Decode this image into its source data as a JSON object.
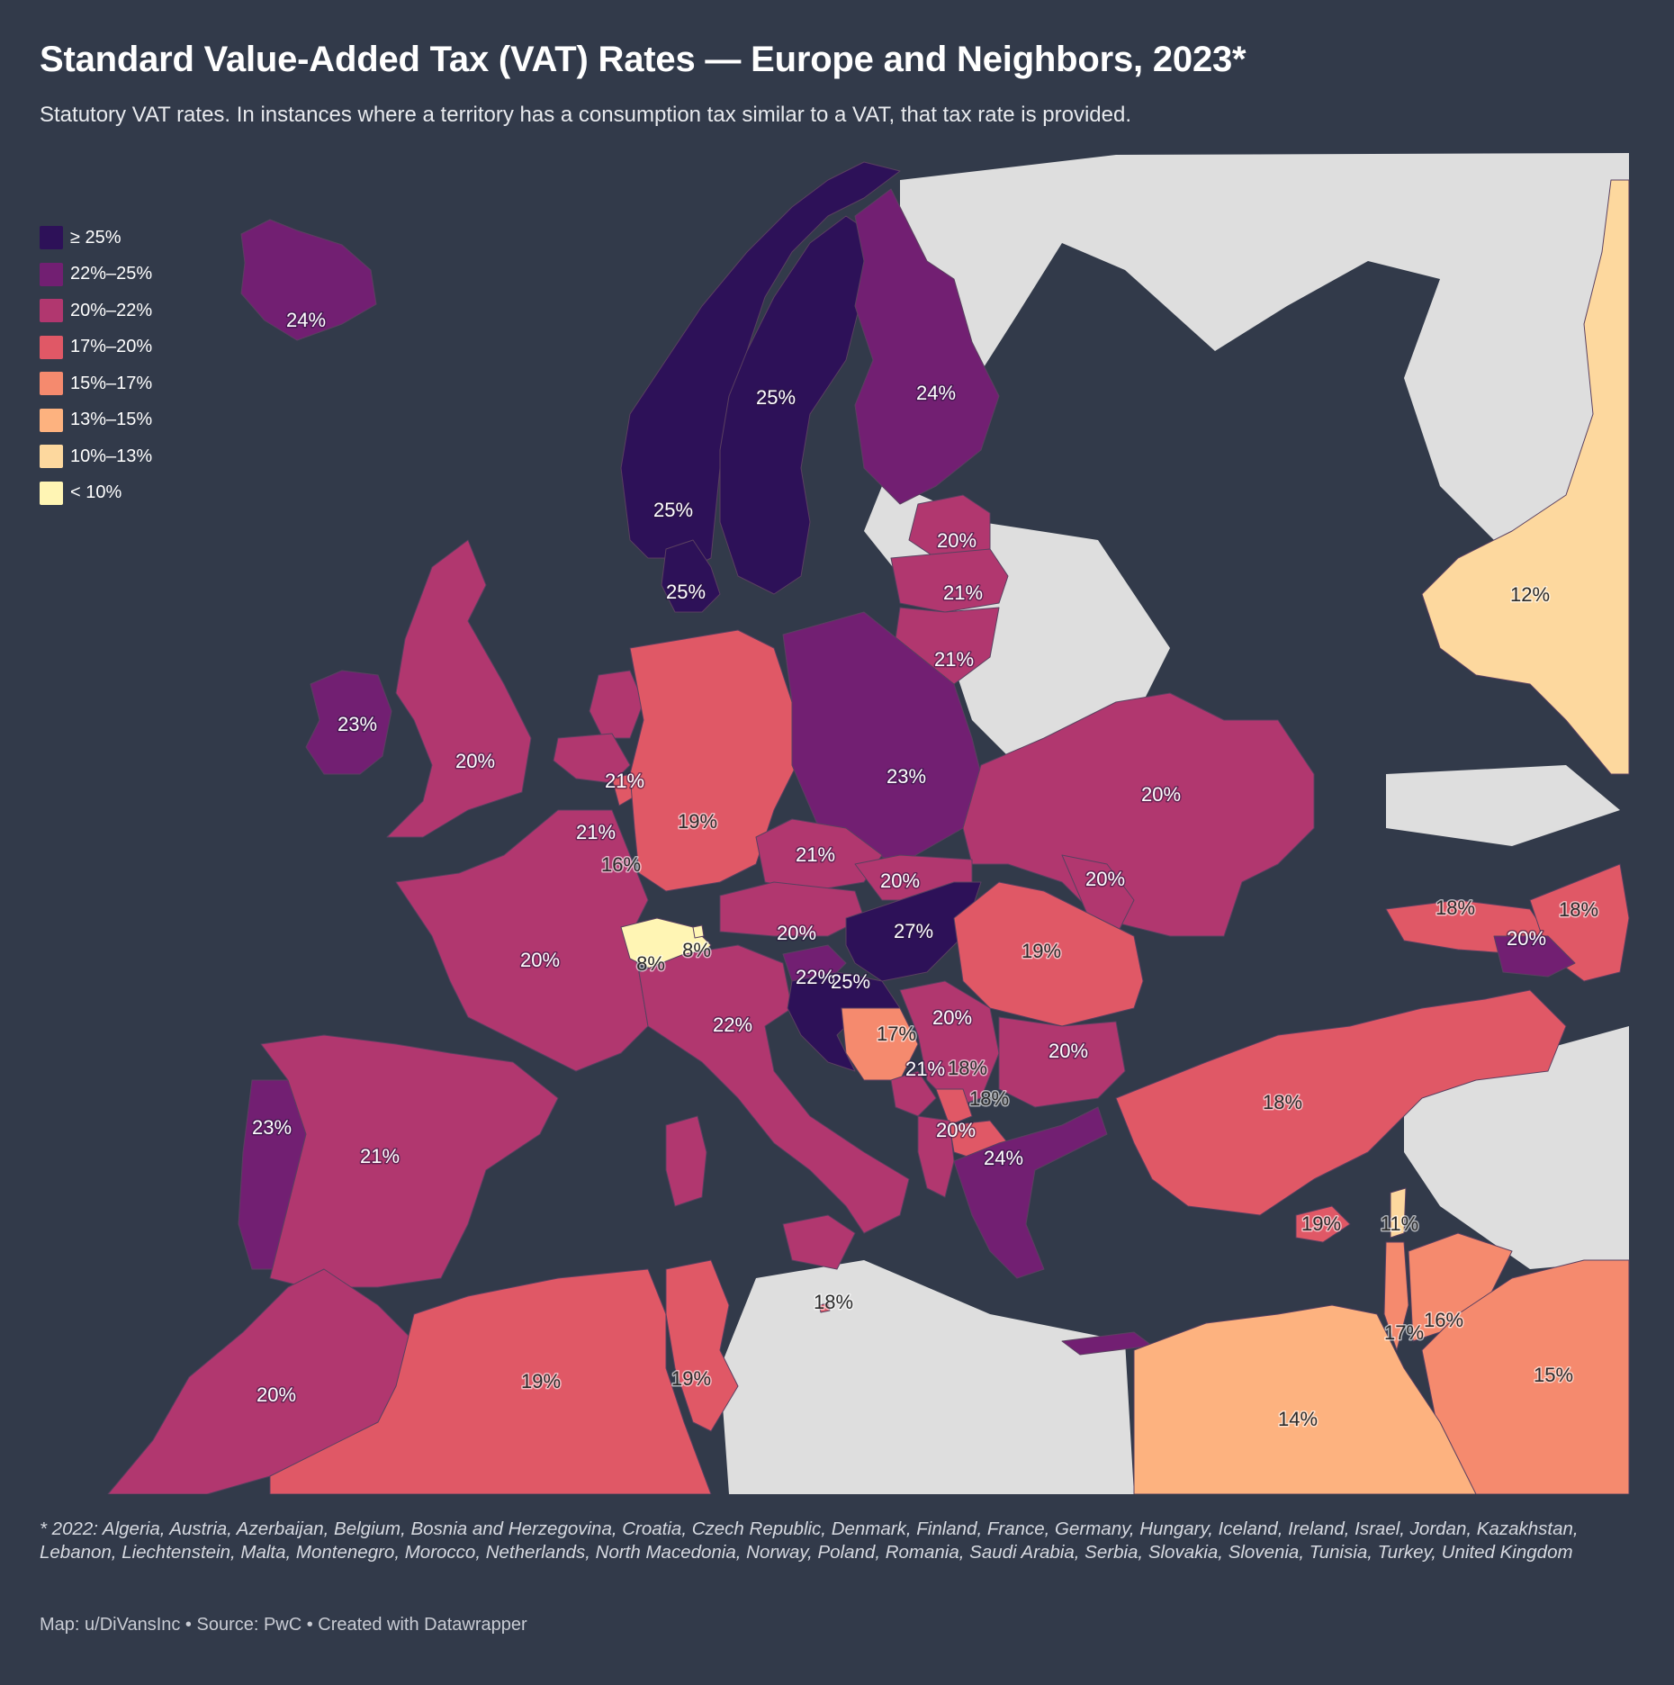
{
  "header": {
    "title": "Standard Value-Added Tax (VAT) Rates — Europe and Neighbors, 2023*",
    "subtitle": "Statutory VAT rates. In instances where a territory has a consumption tax similar to a VAT, that tax rate is provided."
  },
  "legend": [
    {
      "label": "≥ 25%",
      "color": "#2d1158"
    },
    {
      "label": "22%–25%",
      "color": "#721f72"
    },
    {
      "label": "20%–22%",
      "color": "#b1376f"
    },
    {
      "label": "17%–20%",
      "color": "#e05866"
    },
    {
      "label": "15%–17%",
      "color": "#f58a6e"
    },
    {
      "label": "13%–15%",
      "color": "#fdb27f"
    },
    {
      "label": "10%–13%",
      "color": "#fdd89e"
    },
    {
      "label": "< 10%",
      "color": "#fff5b4"
    }
  ],
  "colors": {
    "background": "#323a4a",
    "no_data": "#dedede",
    "border": "#5a4060"
  },
  "map": {
    "labels": [
      {
        "name": "Iceland",
        "text": "24%"
      },
      {
        "name": "Norway",
        "text": "25%"
      },
      {
        "name": "Sweden",
        "text": "25%"
      },
      {
        "name": "Finland",
        "text": "24%"
      },
      {
        "name": "Denmark",
        "text": "25%"
      },
      {
        "name": "Estonia",
        "text": "20%"
      },
      {
        "name": "Latvia",
        "text": "21%"
      },
      {
        "name": "Lithuania",
        "text": "21%"
      },
      {
        "name": "Ireland",
        "text": "23%"
      },
      {
        "name": "United Kingdom",
        "text": "20%"
      },
      {
        "name": "Netherlands",
        "text": "21%"
      },
      {
        "name": "Belgium",
        "text": "21%"
      },
      {
        "name": "Luxembourg",
        "text": "16%"
      },
      {
        "name": "Germany",
        "text": "19%"
      },
      {
        "name": "Poland",
        "text": "23%"
      },
      {
        "name": "Ukraine",
        "text": "20%"
      },
      {
        "name": "Czech Republic",
        "text": "21%"
      },
      {
        "name": "Slovakia",
        "text": "20%"
      },
      {
        "name": "Moldova",
        "text": "20%"
      },
      {
        "name": "Austria",
        "text": "20%"
      },
      {
        "name": "Hungary",
        "text": "27%"
      },
      {
        "name": "Romania",
        "text": "19%"
      },
      {
        "name": "France",
        "text": "20%"
      },
      {
        "name": "Switzerland",
        "text": "8%"
      },
      {
        "name": "Liechtenstein",
        "text": "8%"
      },
      {
        "name": "Slovenia",
        "text": "22%"
      },
      {
        "name": "Croatia",
        "text": "25%"
      },
      {
        "name": "Italy",
        "text": "22%"
      },
      {
        "name": "Bosnia and Herzegovina",
        "text": "17%"
      },
      {
        "name": "Serbia",
        "text": "20%"
      },
      {
        "name": "Montenegro",
        "text": "21%"
      },
      {
        "name": "Kosovo",
        "text": "18%"
      },
      {
        "name": "North Macedonia",
        "text": "18%"
      },
      {
        "name": "Bulgaria",
        "text": "20%"
      },
      {
        "name": "Albania",
        "text": "20%"
      },
      {
        "name": "Greece",
        "text": "24%"
      },
      {
        "name": "Portugal",
        "text": "23%"
      },
      {
        "name": "Spain",
        "text": "21%"
      },
      {
        "name": "Malta",
        "text": "18%"
      },
      {
        "name": "Turkey",
        "text": "18%"
      },
      {
        "name": "Georgia",
        "text": "18%"
      },
      {
        "name": "Azerbaijan",
        "text": "18%"
      },
      {
        "name": "Armenia",
        "text": "20%"
      },
      {
        "name": "Kazakhstan",
        "text": "12%"
      },
      {
        "name": "Cyprus",
        "text": "19%"
      },
      {
        "name": "Lebanon",
        "text": "11%"
      },
      {
        "name": "Jordan",
        "text": "16%"
      },
      {
        "name": "Israel",
        "text": "17%"
      },
      {
        "name": "Saudi Arabia",
        "text": "15%"
      },
      {
        "name": "Egypt",
        "text": "14%"
      },
      {
        "name": "Morocco",
        "text": "20%"
      },
      {
        "name": "Algeria",
        "text": "19%"
      },
      {
        "name": "Tunisia",
        "text": "19%"
      }
    ]
  },
  "footnote": "* 2022: Algeria, Austria, Azerbaijan, Belgium, Bosnia and Herzegovina, Croatia, Czech Republic, Denmark, Finland, France, Germany, Hungary, Iceland, Ireland, Israel, Jordan, Kazakhstan, Lebanon, Liechtenstein, Malta, Montenegro, Morocco, Netherlands, North Macedonia, Norway, Poland, Romania, Saudi Arabia, Serbia, Slovakia, Slovenia, Tunisia, Turkey, United Kingdom",
  "byline": "Map: u/DiVansInc • Source: PwC • Created with Datawrapper"
}
